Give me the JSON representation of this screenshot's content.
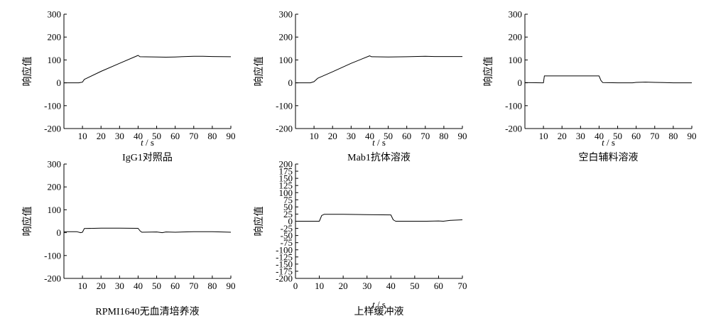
{
  "chart_data": [
    {
      "type": "line",
      "title": "IgG1对照品",
      "xlabel_var": "t",
      "xlabel_unit": " / s",
      "ylabel": "响应值",
      "xlim": [
        0,
        90
      ],
      "ylim": [
        -200,
        300
      ],
      "xticks": [
        10,
        20,
        30,
        40,
        50,
        60,
        70,
        80,
        90
      ],
      "yticks": [
        -200,
        -100,
        0,
        100,
        200,
        300
      ],
      "series": [
        {
          "points": [
            [
              0,
              0
            ],
            [
              8,
              0
            ],
            [
              10,
              3
            ],
            [
              11,
              15
            ],
            [
              20,
              50
            ],
            [
              30,
              85
            ],
            [
              40,
              120
            ],
            [
              41,
              114
            ],
            [
              50,
              113
            ],
            [
              55,
              112
            ],
            [
              60,
              113
            ],
            [
              70,
              116
            ],
            [
              75,
              116
            ],
            [
              80,
              115
            ],
            [
              90,
              114
            ]
          ]
        }
      ]
    },
    {
      "type": "line",
      "title": "Mab1抗体溶液",
      "xlabel_var": "t",
      "xlabel_unit": " / s",
      "ylabel": "响应值",
      "xlim": [
        0,
        90
      ],
      "ylim": [
        -200,
        300
      ],
      "xticks": [
        10,
        20,
        30,
        40,
        50,
        60,
        70,
        80,
        90
      ],
      "yticks": [
        -200,
        -100,
        0,
        100,
        200,
        300
      ],
      "series": [
        {
          "points": [
            [
              0,
              0
            ],
            [
              8,
              0
            ],
            [
              10,
              5
            ],
            [
              12,
              20
            ],
            [
              20,
              48
            ],
            [
              30,
              85
            ],
            [
              40,
              118
            ],
            [
              41,
              114
            ],
            [
              50,
              113
            ],
            [
              60,
              114
            ],
            [
              70,
              116
            ],
            [
              75,
              115
            ],
            [
              90,
              115
            ]
          ]
        }
      ]
    },
    {
      "type": "line",
      "title": "空白辅料溶液",
      "xlabel_var": "t",
      "xlabel_unit": " / s",
      "ylabel": "响应值",
      "xlim": [
        0,
        90
      ],
      "ylim": [
        -200,
        300
      ],
      "xticks": [
        10,
        20,
        30,
        40,
        50,
        60,
        70,
        80,
        90
      ],
      "yticks": [
        -200,
        -100,
        0,
        100,
        200,
        300
      ],
      "series": [
        {
          "points": [
            [
              0,
              1
            ],
            [
              9,
              0
            ],
            [
              10,
              0
            ],
            [
              10.5,
              30
            ],
            [
              12,
              30
            ],
            [
              30,
              30
            ],
            [
              40,
              30
            ],
            [
              41,
              10
            ],
            [
              42,
              1
            ],
            [
              50,
              0
            ],
            [
              58,
              0
            ],
            [
              60,
              2
            ],
            [
              65,
              3
            ],
            [
              70,
              2
            ],
            [
              75,
              1
            ],
            [
              80,
              0
            ],
            [
              90,
              0
            ]
          ]
        }
      ]
    },
    {
      "type": "line",
      "title": "RPMI1640无血清培养液",
      "xlabel_var": "",
      "xlabel_unit": "",
      "ylabel": "响应值",
      "xlim": [
        0,
        90
      ],
      "ylim": [
        -200,
        300
      ],
      "xticks": [
        10,
        20,
        30,
        40,
        50,
        60,
        70,
        80,
        90
      ],
      "yticks": [
        -200,
        -100,
        0,
        100,
        200,
        300
      ],
      "series": [
        {
          "points": [
            [
              0,
              4
            ],
            [
              7,
              4
            ],
            [
              9,
              0
            ],
            [
              10,
              2
            ],
            [
              11,
              18
            ],
            [
              20,
              20
            ],
            [
              30,
              20
            ],
            [
              40,
              19
            ],
            [
              41,
              8
            ],
            [
              42,
              2
            ],
            [
              50,
              3
            ],
            [
              53,
              0
            ],
            [
              55,
              3
            ],
            [
              60,
              2
            ],
            [
              70,
              4
            ],
            [
              80,
              4
            ],
            [
              90,
              2
            ]
          ]
        }
      ]
    },
    {
      "type": "line",
      "title": "上样缓冲液",
      "xlabel_var": "t",
      "xlabel_unit": " / s",
      "ylabel": "响应值",
      "xlim": [
        0,
        70
      ],
      "ylim": [
        -200,
        200
      ],
      "xticks": [
        0,
        10,
        20,
        30,
        40,
        50,
        60,
        70
      ],
      "yticks": [
        -200,
        -175,
        -150,
        -125,
        -100,
        -75,
        -50,
        -25,
        0,
        25,
        50,
        75,
        100,
        125,
        150,
        175,
        200
      ],
      "series": [
        {
          "points": [
            [
              0,
              0
            ],
            [
              10,
              0
            ],
            [
              11,
              20
            ],
            [
              12,
              24
            ],
            [
              20,
              24
            ],
            [
              30,
              23
            ],
            [
              40,
              22
            ],
            [
              41,
              5
            ],
            [
              42,
              0
            ],
            [
              50,
              0
            ],
            [
              55,
              0
            ],
            [
              60,
              1
            ],
            [
              62,
              0
            ],
            [
              65,
              3
            ],
            [
              70,
              5
            ]
          ]
        }
      ]
    }
  ]
}
